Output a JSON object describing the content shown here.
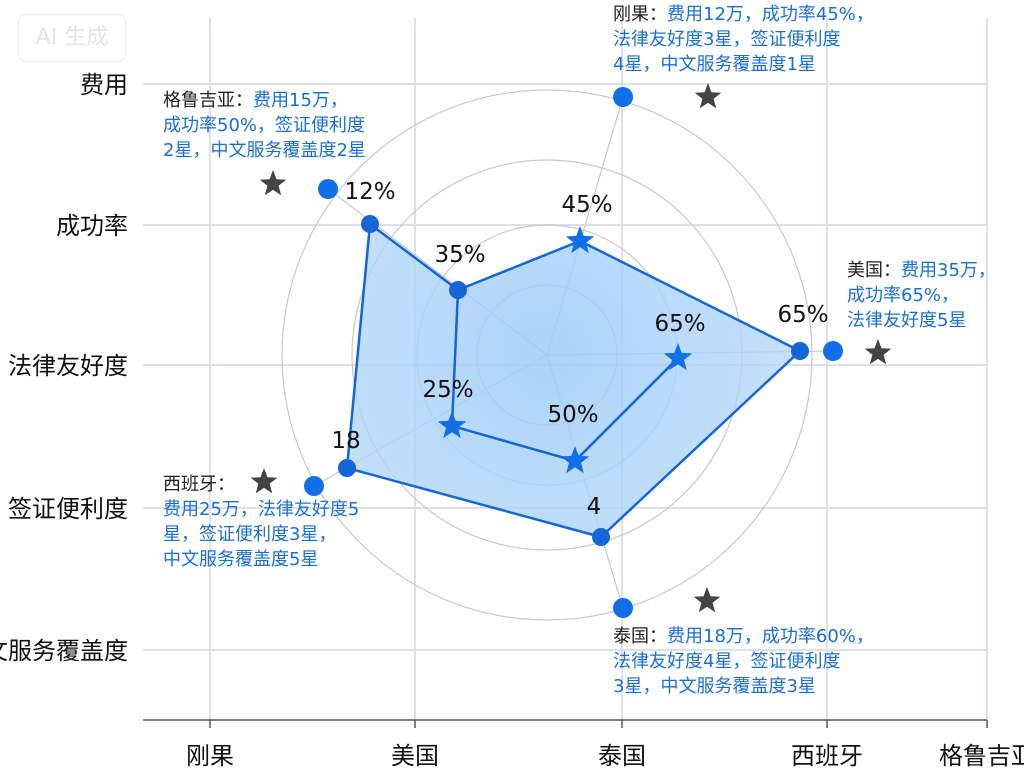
{
  "watermark": "AI 生成",
  "chart_data": {
    "type": "radar",
    "title": "",
    "y_axis_labels": [
      "费用",
      "成功率",
      "法律友好度",
      "签证便利度",
      "中文服务覆盖度"
    ],
    "x_axis_labels": [
      "刚果",
      "美国",
      "泰国",
      "西班牙",
      "格鲁吉亚"
    ],
    "outer_series": {
      "name": "outer",
      "labels": [
        "12%",
        "65%",
        "4",
        "18",
        "35%"
      ]
    },
    "inner_series": {
      "name": "inner",
      "labels": [
        "45%",
        "65%",
        "50%",
        "25%"
      ]
    },
    "annotations": [
      {
        "country": "格鲁吉亚：",
        "text": [
          "费用15万，",
          "成功率50%，签证便利度",
          "2星，中文服务覆盖度2星"
        ]
      },
      {
        "country": "刚果：",
        "text": [
          "费用12万，成功率45%，",
          "法律友好度3星，签证便利度",
          "4星，中文服务覆盖度1星"
        ]
      },
      {
        "country": "美国：",
        "text": [
          "费用35万，",
          "成功率65%，",
          "法律友好度5星"
        ]
      },
      {
        "country": "西班牙：",
        "text": [
          "费用25万，法律友好度5",
          "星，签证便利度3星，",
          "中文服务覆盖度5星"
        ]
      },
      {
        "country": "泰国：",
        "text": [
          "费用18万，成功率60%，",
          "法律友好度4星，签证便利度",
          "3星，中文服务覆盖度3星"
        ]
      }
    ],
    "grid": true,
    "colors": {
      "line": "#1565d8",
      "fill": "#8cc4f5",
      "star": "#444444",
      "grid": "#dde0ea"
    }
  }
}
